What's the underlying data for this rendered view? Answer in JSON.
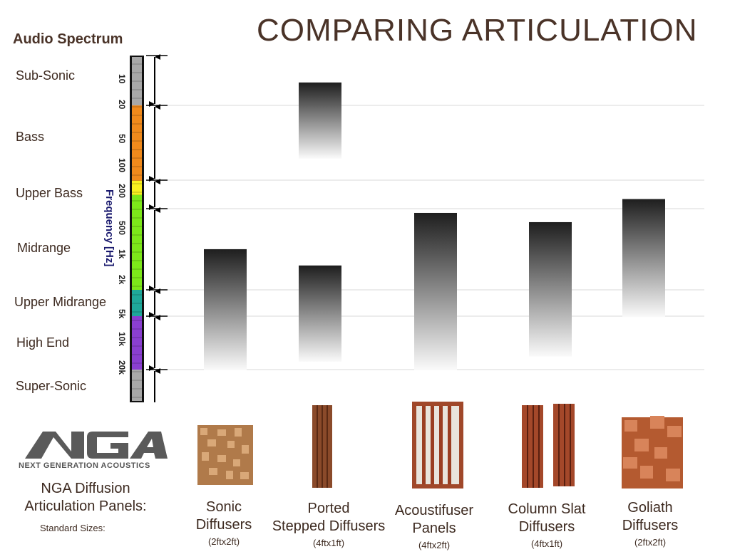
{
  "title": "COMPARING ARTICULATION",
  "spectrum": {
    "title": "Audio Spectrum",
    "frequency_label": "Frequency [Hz]",
    "bands": [
      "Sub-Sonic",
      "Bass",
      "Upper Bass",
      "Midrange",
      "Upper Midrange",
      "High End",
      "Super-Sonic"
    ],
    "ticks": [
      "10",
      "20",
      "50",
      "100",
      "200",
      "500",
      "1k",
      "2k",
      "5k",
      "10k",
      "20k"
    ],
    "band_colors": [
      "#a8a8a8",
      "#f08a1c",
      "#f8f020",
      "#7de81a",
      "#1fa89a",
      "#8a3fd0",
      "#a8a8a8"
    ]
  },
  "chart_data": {
    "type": "bar",
    "title": "COMPARING ARTICULATION",
    "ylabel": "Frequency [Hz]",
    "yscale": "log",
    "ylim": [
      6,
      50000
    ],
    "band_boundaries_hz": [
      6,
      20,
      140,
      300,
      3000,
      5000,
      20000
    ],
    "categories": [
      "Sonic Diffusers",
      "Ported Stepped Diffusers",
      "Acoustifuser Panels",
      "Column Slat Diffusers",
      "Goliath Diffusers"
    ],
    "ranges": [
      [
        [
          850,
          20000
        ]
      ],
      [
        [
          11,
          80
        ],
        [
          1300,
          16000
        ]
      ],
      [
        [
          330,
          20000
        ]
      ],
      [
        [
          420,
          14000
        ]
      ],
      [
        [
          230,
          5000
        ]
      ]
    ]
  },
  "products": [
    {
      "name_line1": "Sonic",
      "name_line2": "Diffusers",
      "size": "(2ftx2ft)"
    },
    {
      "name_line1": "Ported",
      "name_line2": "Stepped Diffusers",
      "size": "(4ftx1ft)"
    },
    {
      "name_line1": "Acoustifuser",
      "name_line2": "Panels",
      "size": "(4ftx2ft)"
    },
    {
      "name_line1": "Column Slat",
      "name_line2": "Diffusers",
      "size": "(4ftx1ft)"
    },
    {
      "name_line1": "Goliath",
      "name_line2": "Diffusers",
      "size": "(2ftx2ft)"
    }
  ],
  "brand": {
    "logo_text": "NGA",
    "logo_subtitle": "NEXT GENERATION ACOUSTICS",
    "heading_line1": "NGA Diffusion",
    "heading_line2": "Articulation Panels:",
    "standard_sizes": "Standard Sizes:"
  }
}
